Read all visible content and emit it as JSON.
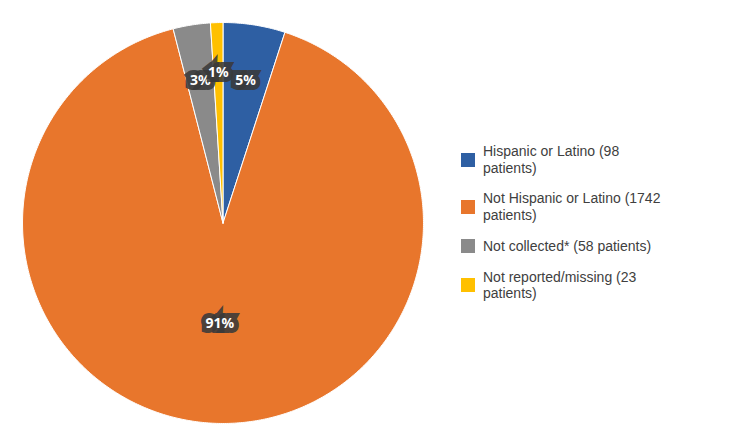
{
  "chart_data": {
    "type": "pie",
    "categories": [
      "Hispanic or Latino (98\npatients)",
      "Not Hispanic or Latino (1742\npatients)",
      "Not collected* (58 patients)",
      "Not reported/missing (23\npatients)"
    ],
    "values": [
      5,
      91,
      3,
      1
    ],
    "value_labels": [
      "5%",
      "91%",
      "3%",
      "1%"
    ],
    "data_labels": true,
    "colors": [
      "#2E5FA3",
      "#E8762C",
      "#8A8A8A",
      "#FFC000"
    ],
    "legend": "right"
  }
}
